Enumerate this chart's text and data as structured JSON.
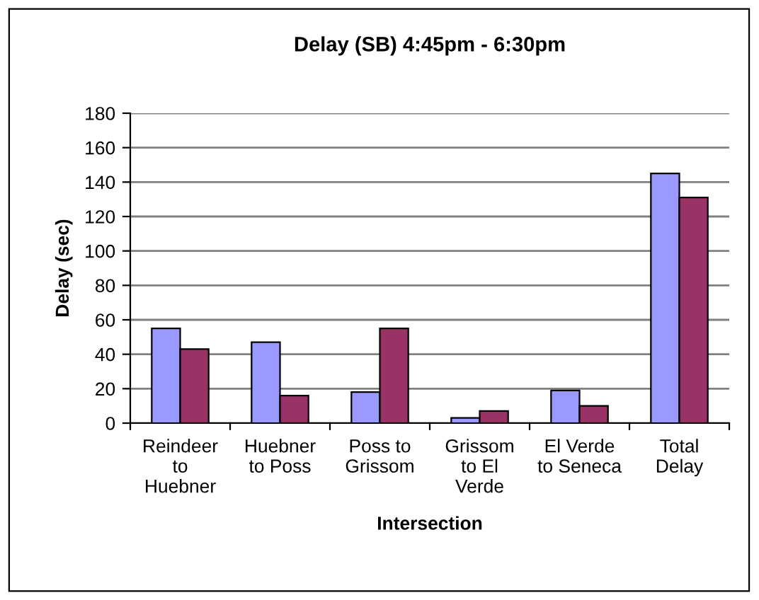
{
  "chart_data": {
    "type": "bar",
    "title": "Delay (SB) 4:45pm - 6:30pm",
    "xlabel": "Intersection",
    "ylabel": "Delay (sec)",
    "categories": [
      "Reindeer\nto\nHuebner",
      "Huebner\nto Poss",
      "Poss to\nGrissom",
      "Grissom\nto El\nVerde",
      "El Verde\nto Seneca",
      "Total\nDelay"
    ],
    "series": [
      {
        "color": "#9999ff",
        "values": [
          55,
          47,
          18,
          3,
          19,
          145
        ]
      },
      {
        "color": "#993366",
        "values": [
          43,
          16,
          55,
          7,
          10,
          131
        ]
      }
    ],
    "ylim": [
      0,
      180
    ],
    "yticks": [
      0,
      20,
      40,
      60,
      80,
      100,
      120,
      140,
      160,
      180
    ],
    "grid": "y",
    "legend": false
  }
}
